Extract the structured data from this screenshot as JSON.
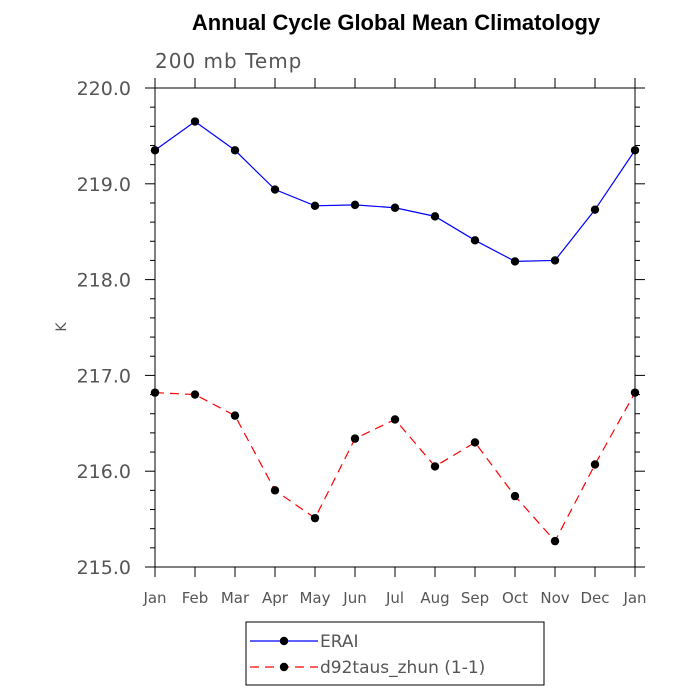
{
  "chart_data": {
    "type": "line",
    "title": "Annual Cycle Global Mean Climatology",
    "subtitle": "200 mb Temp",
    "xlabel": "",
    "ylabel": "K",
    "categories": [
      "Jan",
      "Feb",
      "Mar",
      "Apr",
      "May",
      "Jun",
      "Jul",
      "Aug",
      "Sep",
      "Oct",
      "Nov",
      "Dec",
      "Jan"
    ],
    "ylim": [
      215.0,
      220.0
    ],
    "yticks": [
      "215.0",
      "216.0",
      "217.0",
      "218.0",
      "219.0",
      "220.0"
    ],
    "grid": false,
    "legend_position": "bottom-center",
    "series": [
      {
        "name": "ERAI",
        "color": "#0000ff",
        "dash": "solid",
        "values": [
          219.35,
          219.65,
          219.35,
          218.94,
          218.77,
          218.78,
          218.75,
          218.66,
          218.41,
          218.19,
          218.2,
          218.73,
          219.35
        ]
      },
      {
        "name": "d92taus_zhun (1-1)",
        "color": "#ff0000",
        "dash": "dashed",
        "values": [
          216.82,
          216.8,
          216.58,
          215.8,
          215.51,
          216.34,
          216.54,
          216.05,
          216.3,
          215.74,
          215.27,
          216.07,
          216.82
        ]
      }
    ]
  }
}
